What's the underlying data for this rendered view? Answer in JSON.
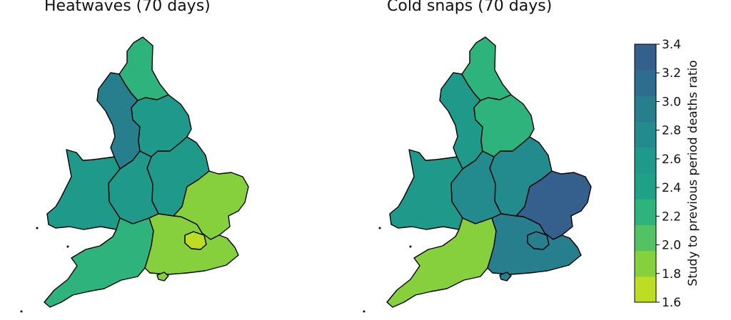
{
  "panels": [
    {
      "title": "Heatwaves (70 days)",
      "regions": {
        "north_east": 2.2,
        "north_west": 2.9,
        "yorkshire": 2.6,
        "west_midlands": 2.5,
        "east_midlands": 2.6,
        "wales": 2.5,
        "east_of_england": 1.9,
        "london": 1.7,
        "south_west": 2.3,
        "south_east": 1.8
      }
    },
    {
      "title": "Cold snaps (70 days)",
      "regions": {
        "north_east": 2.3,
        "north_west": 2.6,
        "yorkshire": 2.3,
        "west_midlands": 2.8,
        "east_midlands": 2.8,
        "wales": 2.5,
        "east_of_england": 3.3,
        "london": 3.0,
        "south_west": 1.9,
        "south_east": 3.0
      }
    }
  ],
  "colorbar": {
    "label": "Study to previous period deaths ratio",
    "ticks": [
      "1.6",
      "1.8",
      "2.0",
      "2.2",
      "2.4",
      "2.6",
      "2.8",
      "3.0",
      "3.2",
      "3.4"
    ],
    "min": 1.6,
    "max": 3.4,
    "colors": [
      "#bcdd24",
      "#86cf3d",
      "#52c265",
      "#2fb37c",
      "#1fa187",
      "#1f9a8a",
      "#238a8d",
      "#277f8e",
      "#2d6e8e",
      "#355f8d"
    ]
  }
}
